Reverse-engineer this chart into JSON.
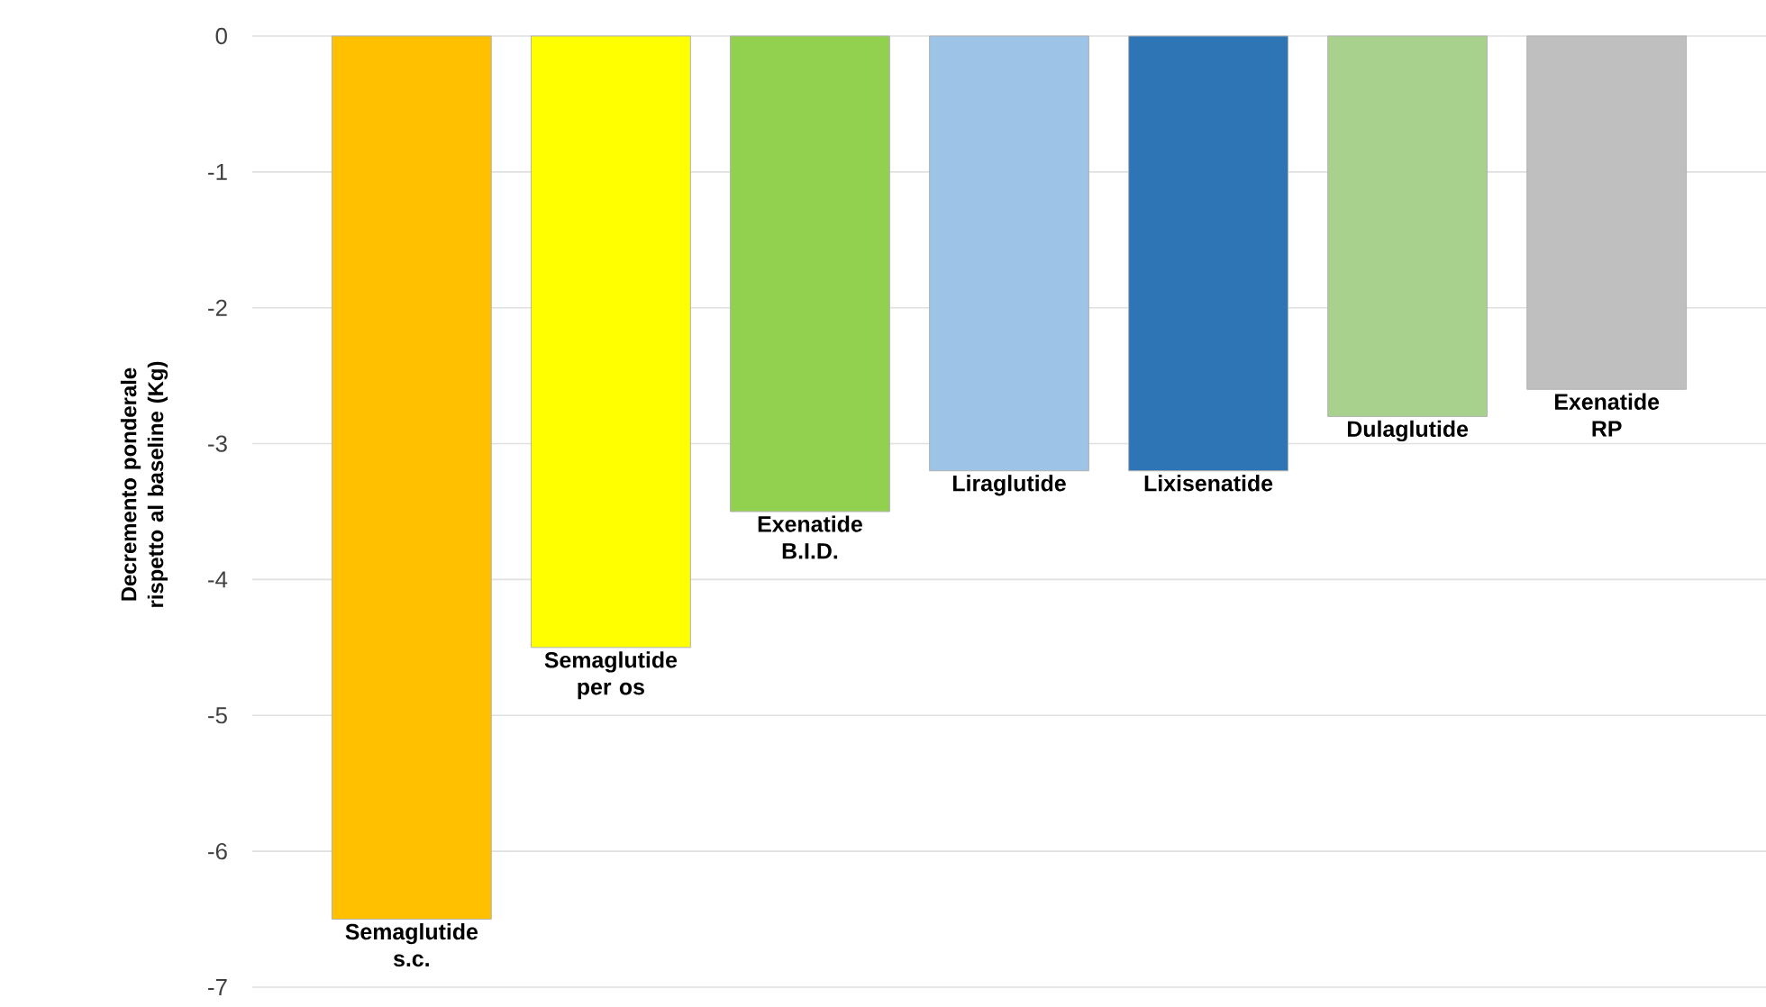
{
  "chart_data": {
    "type": "bar",
    "ylabel": "Decremento ponderale rispetto al baseline (Kg)",
    "categories": [
      "Semaglutide s.c.",
      "Semaglutide per os",
      "Exenatide B.I.D.",
      "Liraglutide",
      "Lixisenatide",
      "Dulaglutide",
      "Exenatide RP"
    ],
    "values": [
      -6.5,
      -4.5,
      -3.5,
      -3.2,
      -3.2,
      -2.8,
      -2.6
    ],
    "colors": [
      "#ffc000",
      "#ffff00",
      "#92d050",
      "#9dc3e6",
      "#2e75b6",
      "#a9d18e",
      "#bfbfbf"
    ],
    "ylim": [
      -7,
      0
    ],
    "yticks": [
      -7,
      -6,
      -5,
      -4,
      -3,
      -2,
      -1,
      0
    ],
    "grid": "y"
  }
}
